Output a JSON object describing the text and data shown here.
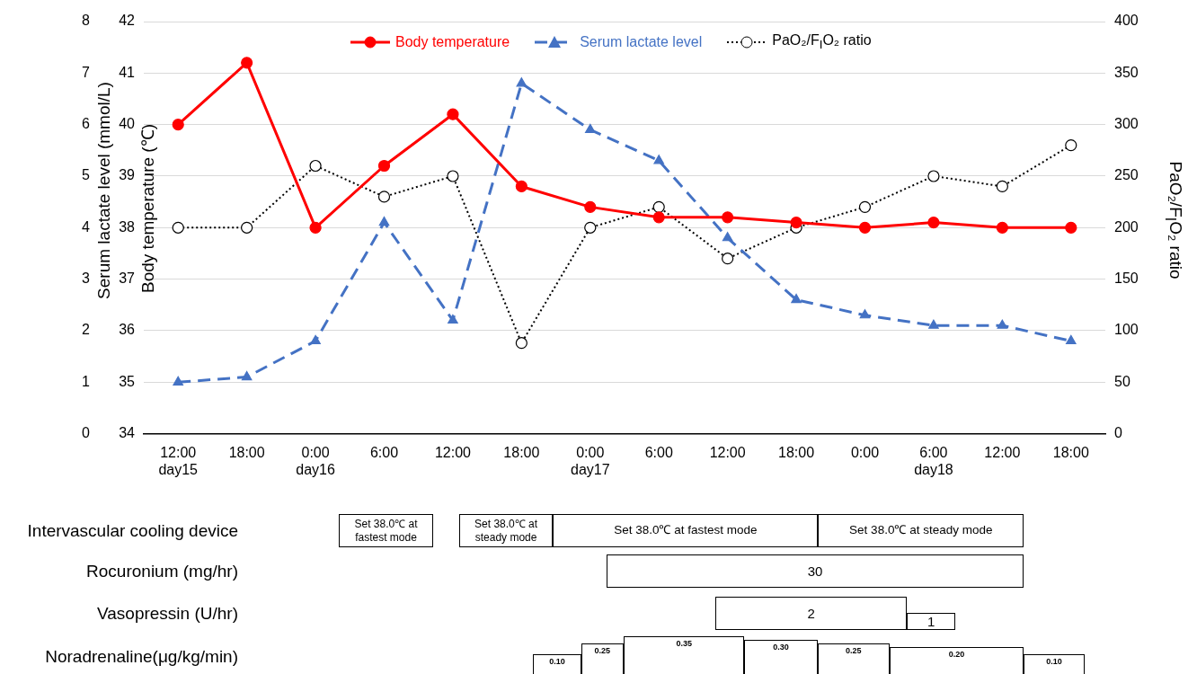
{
  "chart_data": [
    {
      "type": "line",
      "xlabel": null,
      "ylabel": "Body temperature (℃)",
      "y3label": "Serum lactate level  (mmol/L)",
      "y2label": "PaO₂/F$_{I}$O₂ ratio",
      "categories": [
        "12:00\nday15",
        "18:00",
        "0:00\nday16",
        "6:00",
        "12:00",
        "18:00",
        "0:00\nday17",
        "6:00",
        "12:00",
        "18:00",
        "0:00",
        "6:00\nday18",
        "12:00",
        "18:00"
      ],
      "series": [
        {
          "name": "Body temperature",
          "color": "#ff0000",
          "marker": "circle",
          "line_style": "solid",
          "values": [
            40,
            41.2,
            38,
            39.2,
            40.2,
            38.8,
            38.4,
            38.2,
            38.2,
            38.1,
            38,
            38.1,
            38,
            38
          ]
        },
        {
          "name": "Serum lactate level",
          "color": "#4472c4",
          "marker": "triangle",
          "line_style": "dashed",
          "axis": "y3",
          "values": [
            1.0,
            1.1,
            1.8,
            4.1,
            2.2,
            6.8,
            5.9,
            5.3,
            3.8,
            2.6,
            2.3,
            2.1,
            2.1,
            1.8
          ]
        },
        {
          "name": "PaO₂/F$_{I}$O₂ ratio",
          "color": "#000000",
          "marker": "circle",
          "line_style": "dotted",
          "axis": "y2",
          "values": [
            200,
            200,
            260,
            230,
            250,
            88,
            200,
            220,
            170,
            200,
            220,
            250,
            240,
            280
          ]
        }
      ],
      "ylim": [
        34,
        42
      ],
      "yticks": [
        34,
        35,
        36,
        37,
        38,
        39,
        40,
        41,
        42
      ],
      "y3lim": [
        0,
        8
      ],
      "y3ticks": [
        0,
        1,
        2,
        3,
        4,
        5,
        6,
        7,
        8
      ],
      "y2lim": [
        0,
        400
      ],
      "y2ticks": [
        0,
        50,
        100,
        150,
        200,
        250,
        300,
        350,
        400
      ],
      "grid": "y",
      "legend": "top"
    },
    {
      "type": "other",
      "categories": [
        "Intervascular cooling device",
        "Rocuronium (mg/hr)",
        "Vasopressin (U/hr)",
        "Noradrenaline(μg/kg/min)"
      ],
      "annotations": [
        "Set 38.0℃ at fastest mode",
        "Set 38.0℃ at steady mode",
        "Set 38.0℃ at fastest mode",
        "Set 38.0℃ at steady mode",
        "30",
        "2",
        "1",
        "0.10",
        "0.25",
        "0.35",
        "0.30",
        "0.25",
        "0.20",
        "0.10"
      ]
    }
  ]
}
